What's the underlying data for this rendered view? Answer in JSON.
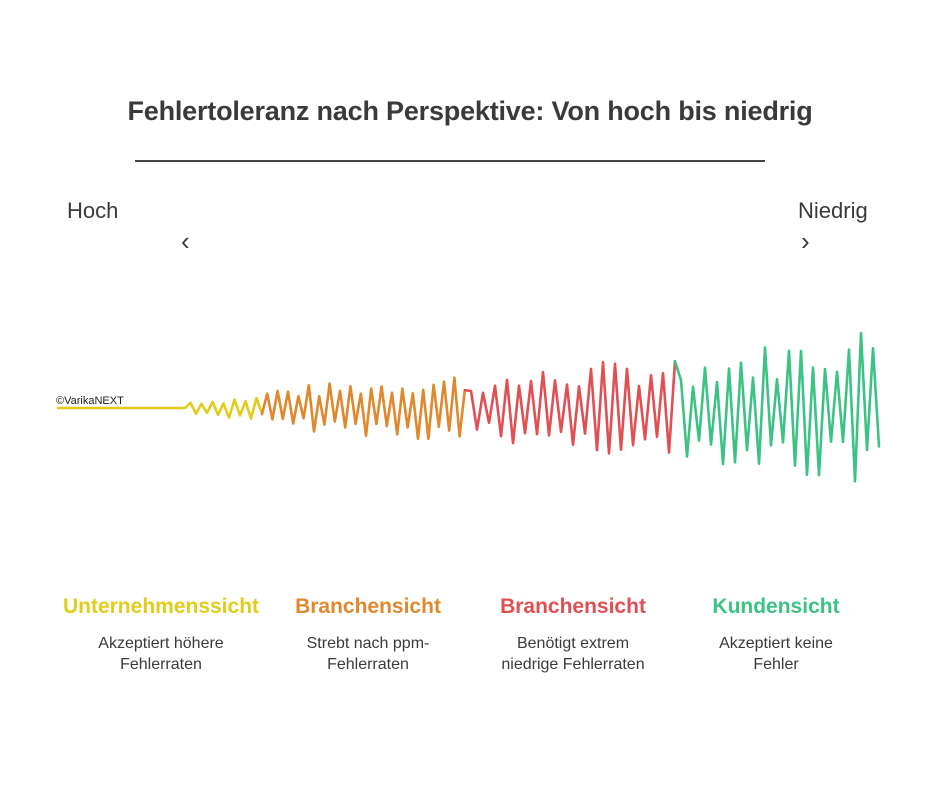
{
  "title": "Fehlertoleranz nach Perspektive: Von hoch bis niedrig",
  "scale": {
    "high_label": "Hoch",
    "low_label": "Niedrig",
    "left_chevron": "‹",
    "right_chevron": "›"
  },
  "copyright": "©VarikaNEXT",
  "categories": [
    {
      "title": "Unternehmenssicht",
      "color": "#e0cc1b",
      "desc": [
        "Akzeptiert höhere",
        "Fehlerraten"
      ]
    },
    {
      "title": "Branchensicht",
      "color": "#e0882d",
      "desc": [
        "Strebt nach ppm-",
        "Fehlerraten"
      ]
    },
    {
      "title": "Branchensicht",
      "color": "#e04f52",
      "desc": [
        "Benötigt extrem",
        "niedrige Fehlerraten"
      ]
    },
    {
      "title": "Kundensicht",
      "color": "#3cc384",
      "desc": [
        "Akzeptiert keine",
        "Fehler"
      ]
    }
  ]
}
